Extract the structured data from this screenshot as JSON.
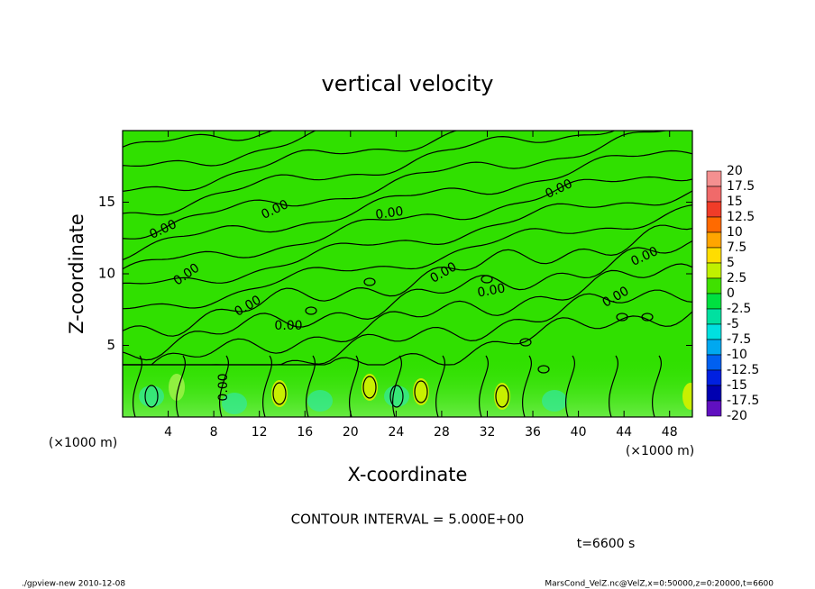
{
  "chart_data": {
    "type": "contour",
    "title": "vertical velocity",
    "x_label": "X-coordinate",
    "y_label": "Z-coordinate",
    "x_unit_label": "(×1000 m)",
    "y_unit_label": "(×1000 m)",
    "xlim": [
      0,
      50
    ],
    "ylim": [
      0,
      20
    ],
    "xticks": [
      4,
      8,
      12,
      16,
      20,
      24,
      28,
      32,
      36,
      40,
      44,
      48
    ],
    "yticks": [
      5,
      10,
      15
    ],
    "contour_labels": [
      "0.00",
      "0.00",
      "0.00",
      "0.00",
      "0.00",
      "0.00",
      "0.00",
      "0.00",
      "0.00",
      "0.00",
      "0.00",
      "0.00"
    ],
    "contour_interval": "CONTOUR INTERVAL = 5.000E+00",
    "time_label": "t=6600 s",
    "footer_left": "./gpview-new  2010-12-08",
    "footer_right": "MarsCond_VelZ.nc@VelZ,x=0:50000,z=0:20000,t=6600",
    "colorbar": {
      "levels": [
        20,
        17.5,
        15,
        12.5,
        10,
        7.5,
        5,
        2.5,
        0,
        -2.5,
        -5,
        -7.5,
        -10,
        -12.5,
        -15,
        -17.5,
        -20
      ],
      "colors": [
        "#f49090",
        "#f06a6a",
        "#f03c28",
        "#ff6a00",
        "#ffa500",
        "#ffdd00",
        "#c0f000",
        "#40e000",
        "#00e040",
        "#00e0a0",
        "#00e0e0",
        "#00a8f0",
        "#0060f0",
        "#0020e0",
        "#0000b0",
        "#6010c0"
      ]
    }
  }
}
